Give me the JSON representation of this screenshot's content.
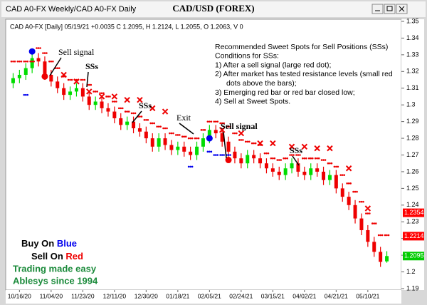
{
  "window": {
    "tab": "CAD A0-FX Weekly/CAD A0-FX Daily",
    "title": "CAD/USD (FOREX)"
  },
  "chart_data": {
    "type": "candlestick",
    "header": "CAD A0-FX [Daily] 05/19/21 +0.0035 C 1.2095, H 1.2124, L 1.2055, O 1.2063, V 0",
    "categories": [
      null,
      "10/16/20",
      null,
      null,
      null,
      null,
      "11/04/20",
      null,
      null,
      null,
      null,
      "11/23/20",
      null,
      null,
      null,
      null,
      "12/11/20",
      null,
      null,
      null,
      null,
      "12/30/20",
      null,
      null,
      null,
      null,
      "01/18/21",
      null,
      null,
      null,
      null,
      "02/05/21",
      null,
      null,
      null,
      null,
      "02/24/21",
      null,
      null,
      null,
      null,
      "03/15/21",
      null,
      null,
      null,
      null,
      "04/02/21",
      null,
      null,
      null,
      null,
      "04/21/21",
      null,
      null,
      null,
      null,
      "05/10/21",
      null,
      null,
      null
    ],
    "open": [
      1.313,
      1.316,
      1.318,
      1.322,
      1.328,
      1.326,
      1.318,
      1.314,
      1.31,
      1.306,
      1.308,
      1.31,
      1.305,
      1.3,
      1.302,
      1.298,
      1.296,
      1.292,
      1.288,
      1.29,
      1.286,
      1.284,
      1.28,
      1.275,
      1.28,
      1.276,
      1.273,
      1.275,
      1.272,
      1.27,
      1.275,
      1.28,
      1.285,
      1.283,
      1.278,
      1.272,
      1.268,
      1.265,
      1.27,
      1.268,
      1.265,
      1.262,
      1.26,
      1.258,
      1.262,
      1.265,
      1.26,
      1.258,
      1.262,
      1.26,
      1.255,
      1.258,
      1.25,
      1.245,
      1.24,
      1.232,
      1.225,
      1.218,
      1.212,
      1.2063
    ],
    "high": [
      1.319,
      1.321,
      1.325,
      1.331,
      1.331,
      1.329,
      1.321,
      1.317,
      1.313,
      1.311,
      1.313,
      1.313,
      1.308,
      1.305,
      1.305,
      1.301,
      1.299,
      1.295,
      1.293,
      1.293,
      1.289,
      1.287,
      1.283,
      1.283,
      1.283,
      1.279,
      1.278,
      1.278,
      1.275,
      1.278,
      1.283,
      1.288,
      1.288,
      1.286,
      1.281,
      1.275,
      1.271,
      1.273,
      1.273,
      1.271,
      1.268,
      1.265,
      1.263,
      1.265,
      1.268,
      1.268,
      1.263,
      1.265,
      1.265,
      1.263,
      1.261,
      1.261,
      1.253,
      1.248,
      1.243,
      1.235,
      1.228,
      1.221,
      1.215,
      1.2124
    ],
    "low": [
      1.31,
      1.313,
      1.315,
      1.319,
      1.323,
      1.315,
      1.311,
      1.307,
      1.303,
      1.303,
      1.305,
      1.302,
      1.297,
      1.297,
      1.295,
      1.293,
      1.289,
      1.285,
      1.285,
      1.283,
      1.281,
      1.277,
      1.272,
      1.272,
      1.273,
      1.27,
      1.27,
      1.269,
      1.267,
      1.267,
      1.272,
      1.277,
      1.28,
      1.275,
      1.269,
      1.265,
      1.262,
      1.262,
      1.265,
      1.262,
      1.259,
      1.257,
      1.255,
      1.255,
      1.259,
      1.257,
      1.255,
      1.255,
      1.257,
      1.252,
      1.252,
      1.247,
      1.242,
      1.237,
      1.229,
      1.222,
      1.215,
      1.209,
      1.203,
      1.2055
    ],
    "close": [
      1.316,
      1.318,
      1.322,
      1.328,
      1.326,
      1.318,
      1.314,
      1.31,
      1.306,
      1.308,
      1.31,
      1.305,
      1.3,
      1.302,
      1.298,
      1.296,
      1.292,
      1.288,
      1.29,
      1.286,
      1.284,
      1.28,
      1.275,
      1.28,
      1.276,
      1.273,
      1.275,
      1.272,
      1.27,
      1.275,
      1.28,
      1.285,
      1.283,
      1.278,
      1.272,
      1.268,
      1.265,
      1.27,
      1.268,
      1.265,
      1.262,
      1.26,
      1.258,
      1.262,
      1.265,
      1.26,
      1.258,
      1.262,
      1.26,
      1.255,
      1.258,
      1.25,
      1.245,
      1.24,
      1.232,
      1.225,
      1.218,
      1.212,
      1.206,
      1.2095
    ],
    "up_color": "#00dd00",
    "down_color": "#ee0000",
    "resistance": [
      1.326,
      1.326,
      1.326,
      1.326,
      1.334,
      1.331,
      1.326,
      1.322,
      1.317,
      1.315,
      1.315,
      1.315,
      1.312,
      1.308,
      1.307,
      1.305,
      1.302,
      1.298,
      1.296,
      1.295,
      1.293,
      1.291,
      1.289,
      1.287,
      1.286,
      1.283,
      1.282,
      1.281,
      1.28,
      1.28,
      1.285,
      1.29,
      1.29,
      1.289,
      1.287,
      1.283,
      1.279,
      1.278,
      1.277,
      1.276,
      1.271,
      1.268,
      1.267,
      1.268,
      1.27,
      1.27,
      1.268,
      1.268,
      1.268,
      1.267,
      1.265,
      1.263,
      1.258,
      1.253,
      1.248,
      1.242,
      1.235,
      1.229,
      1.222,
      1.222
    ],
    "resistance_color": "#ee0000",
    "x_marks": [
      null,
      null,
      null,
      null,
      null,
      null,
      null,
      null,
      1.318,
      null,
      1.314,
      null,
      1.308,
      null,
      1.305,
      null,
      1.305,
      null,
      1.303,
      null,
      1.303,
      null,
      1.298,
      null,
      1.296,
      null,
      null,
      null,
      null,
      null,
      null,
      null,
      null,
      1.285,
      null,
      null,
      1.283,
      null,
      null,
      1.277,
      null,
      1.277,
      null,
      null,
      1.275,
      null,
      1.275,
      null,
      1.274,
      null,
      1.274,
      null,
      null,
      1.262,
      null,
      null,
      1.238,
      null,
      null,
      null
    ],
    "x_color": "#ee0000",
    "support": [
      null,
      null,
      1.306,
      null,
      null,
      null,
      null,
      null,
      null,
      null,
      null,
      null,
      null,
      null,
      null,
      null,
      null,
      null,
      null,
      null,
      null,
      null,
      null,
      null,
      null,
      null,
      null,
      null,
      1.263,
      null,
      null,
      1.272,
      1.27,
      1.27,
      1.27,
      null,
      null,
      null,
      null,
      null,
      null,
      null,
      null,
      null,
      null,
      null,
      null,
      null,
      null,
      null,
      null,
      null,
      null,
      null,
      null,
      null,
      null,
      null,
      null,
      null
    ],
    "support_color": "#0000ee",
    "buy_signals": [
      null,
      null,
      null,
      1.332,
      null,
      null,
      null,
      null,
      null,
      null,
      null,
      null,
      null,
      null,
      null,
      null,
      null,
      null,
      null,
      null,
      null,
      null,
      null,
      null,
      null,
      null,
      null,
      null,
      null,
      null,
      null,
      1.28,
      null,
      null,
      null,
      null,
      null,
      null,
      null,
      null,
      null,
      null,
      null,
      null,
      null,
      null,
      null,
      null,
      null,
      null,
      null,
      null,
      null,
      null,
      null,
      null,
      null,
      null,
      null,
      null
    ],
    "sell_signals": [
      null,
      null,
      null,
      null,
      null,
      1.317,
      null,
      null,
      null,
      null,
      null,
      null,
      null,
      null,
      null,
      null,
      null,
      null,
      null,
      null,
      null,
      null,
      null,
      null,
      null,
      null,
      null,
      null,
      null,
      null,
      null,
      null,
      null,
      null,
      1.267,
      null,
      null,
      null,
      null,
      null,
      null,
      null,
      null,
      null,
      null,
      null,
      null,
      null,
      null,
      null,
      null,
      null,
      null,
      null,
      null,
      null,
      null,
      null,
      null,
      null
    ],
    "ylim": [
      1.19,
      1.35
    ],
    "yticks": [
      1.19,
      1.2,
      1.21,
      1.22,
      1.23,
      1.24,
      1.25,
      1.26,
      1.27,
      1.28,
      1.29,
      1.3,
      1.31,
      1.32,
      1.33,
      1.34,
      1.35
    ],
    "grid": false,
    "price_labels": [
      {
        "value": 1.2354,
        "color": "#ff0000"
      },
      {
        "value": 1.2214,
        "color": "#ff0000"
      },
      {
        "value": 1.2095,
        "color": "#00cc00"
      }
    ],
    "annotations": [
      "Sell signal",
      "SSs",
      "SSs",
      "Exit",
      "Sell signal",
      "SSs"
    ],
    "notes": [
      "Recommended Sweet Spots for Sell Positions (SSs)",
      "Conditions for SSs:",
      "1) After a sell signal (large red dot);",
      "2) After market has tested resistance levels (small red",
      "dots above the bars);",
      "3) Emerging red bar or red bar closed low;",
      "4) Sell at Sweet Spots."
    ],
    "branding": {
      "buy": [
        "Buy On ",
        "Blue"
      ],
      "sell": [
        "Sell On ",
        "Red"
      ],
      "tagline": "Trading made easy",
      "since": "Ablesys since 1994"
    }
  }
}
